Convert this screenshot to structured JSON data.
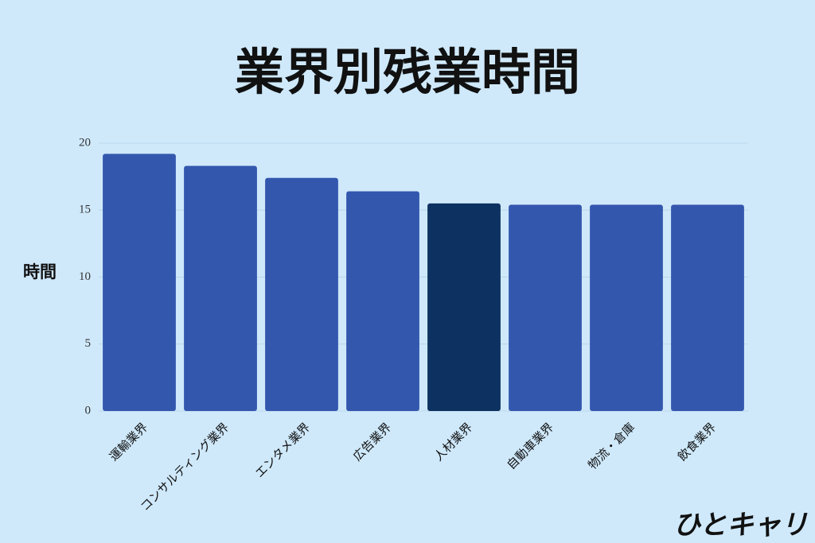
{
  "chart_data": {
    "type": "bar",
    "title": "業界別残業時間",
    "y_label": "時間",
    "categories": [
      "運輸業界",
      "コンサルティング業界",
      "エンタメ業界",
      "広告業界",
      "人材業界",
      "自動車業界",
      "物流・倉庫",
      "飲食業界"
    ],
    "values": [
      19.2,
      18.3,
      17.4,
      16.4,
      15.5,
      15.4,
      15.4,
      15.4
    ],
    "colors": [
      "#3457ae",
      "#3457ae",
      "#3457ae",
      "#3457ae",
      "#0d3160",
      "#3457ae",
      "#3457ae",
      "#3457ae"
    ],
    "ylim": [
      0,
      20
    ],
    "yticks": [
      0,
      5,
      10,
      15,
      20
    ],
    "grid": true
  },
  "logo": "ひとキャリ"
}
